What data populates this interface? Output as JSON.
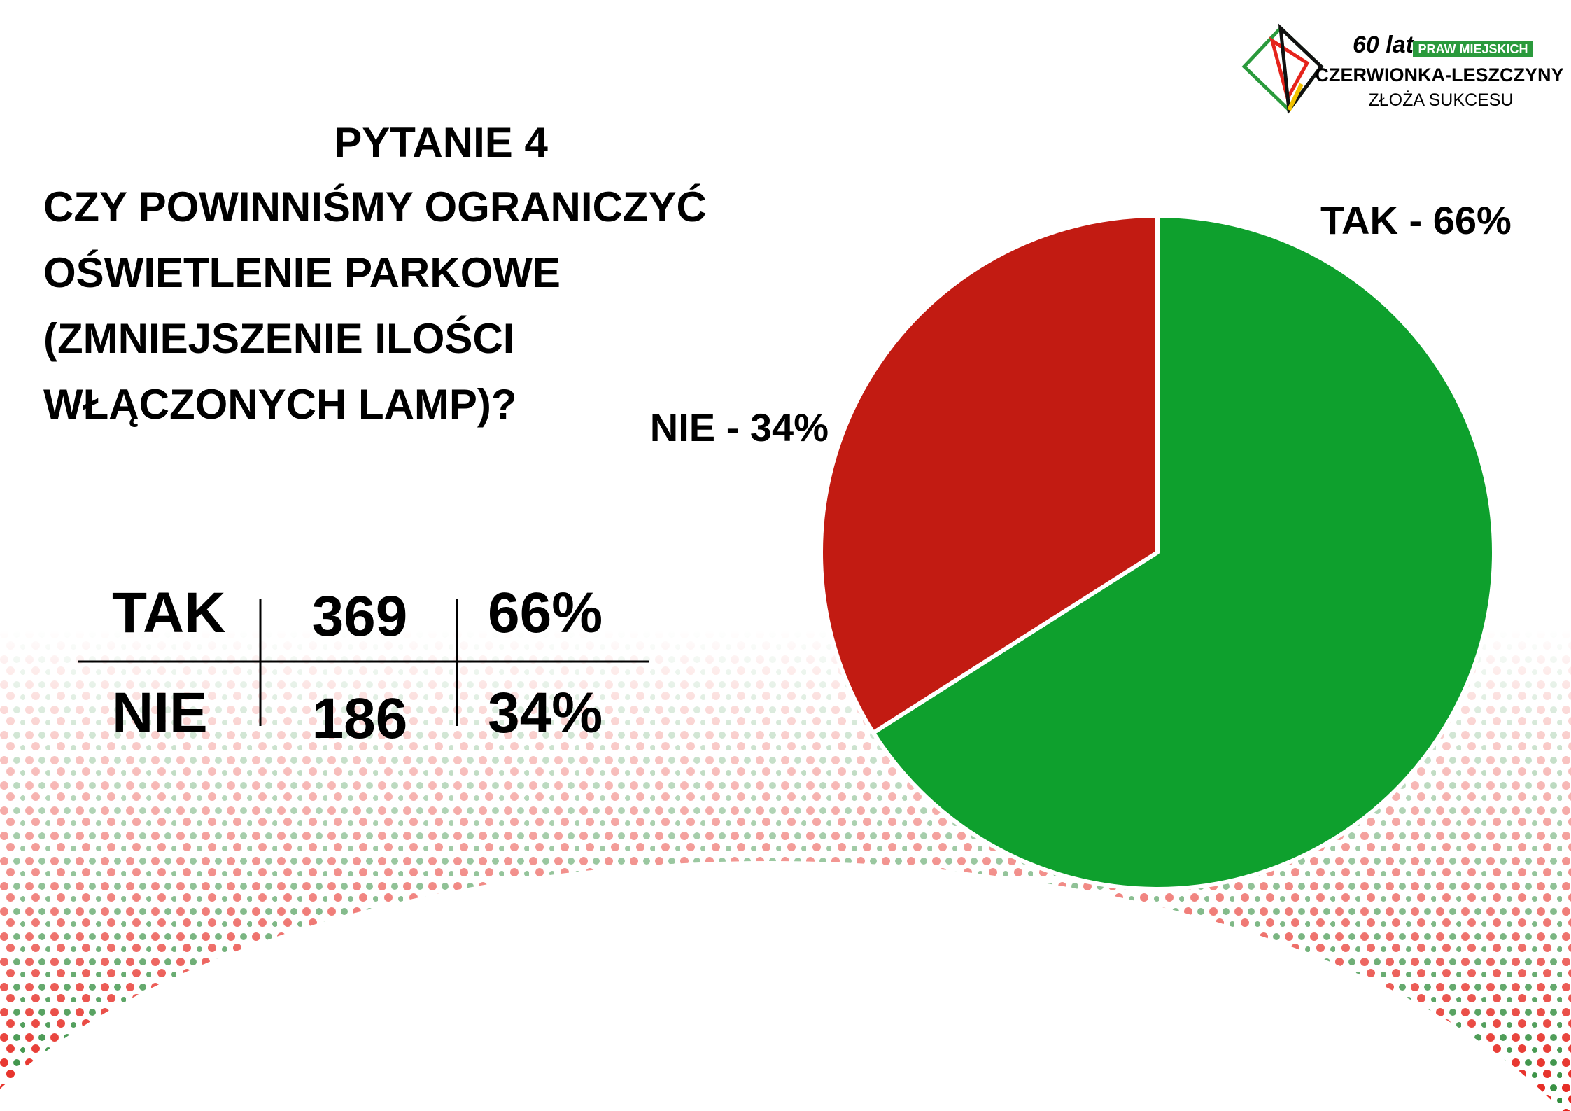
{
  "header": {
    "title": "PYTANIE 4",
    "question": [
      "CZY POWINNIŚMY OGRANICZYĆ",
      "OŚWIETLENIE PARKOWE",
      "(ZMNIEJSZENIE ILOŚCI",
      "WŁĄCZONYCH LAMP)?"
    ],
    "logo": {
      "years": "60 lat",
      "badge": "PRAW MIEJSKICH",
      "name": "CZERWIONKA-LESZCZYNY",
      "slogan": "ZŁOŻA SUKCESU"
    }
  },
  "table": {
    "rows": [
      [
        "TAK",
        "369",
        "66%"
      ],
      [
        "NIE",
        "186",
        "34%"
      ]
    ]
  },
  "chart_data": {
    "type": "pie",
    "categories": [
      "TAK",
      "NIE"
    ],
    "values": [
      66,
      34
    ],
    "value_labels": [
      "TAK - 66%",
      "NIE - 34%"
    ],
    "colors": [
      "#0ea02d",
      "#c21b12"
    ]
  }
}
